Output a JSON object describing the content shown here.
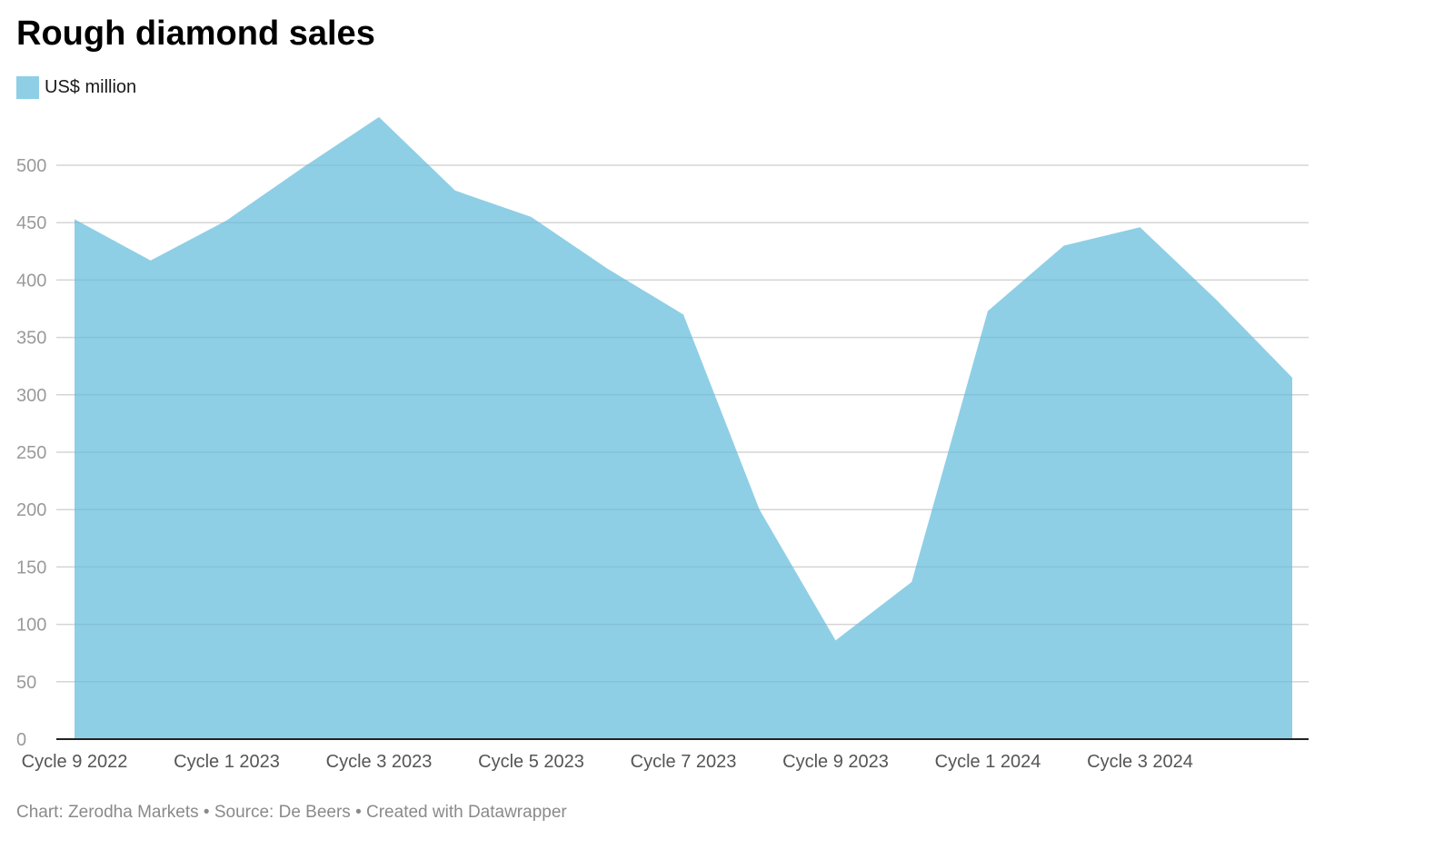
{
  "chart_data": {
    "type": "area",
    "title": "Rough diamond sales",
    "legend": [
      {
        "label": "US$ million",
        "color": "#8ecfe6"
      }
    ],
    "x_tick_labels": [
      "Cycle 9 2022",
      "Cycle 1 2023",
      "Cycle 3 2023",
      "Cycle 5 2023",
      "Cycle 7 2023",
      "Cycle 9 2023",
      "Cycle 1 2024",
      "Cycle 3 2024"
    ],
    "y_ticks": [
      0,
      50,
      100,
      150,
      200,
      250,
      300,
      350,
      400,
      450,
      500
    ],
    "ylim": [
      0,
      500
    ],
    "grid": true,
    "series": [
      {
        "name": "US$ million",
        "color": "#8ecfe6",
        "values": [
          453,
          417,
          452,
          498,
          542,
          478,
          455,
          410,
          370,
          200,
          86,
          137,
          373,
          430,
          446,
          383,
          315
        ]
      }
    ],
    "footer": "Chart: Zerodha Markets • Source: De Beers • Created with Datawrapper"
  }
}
